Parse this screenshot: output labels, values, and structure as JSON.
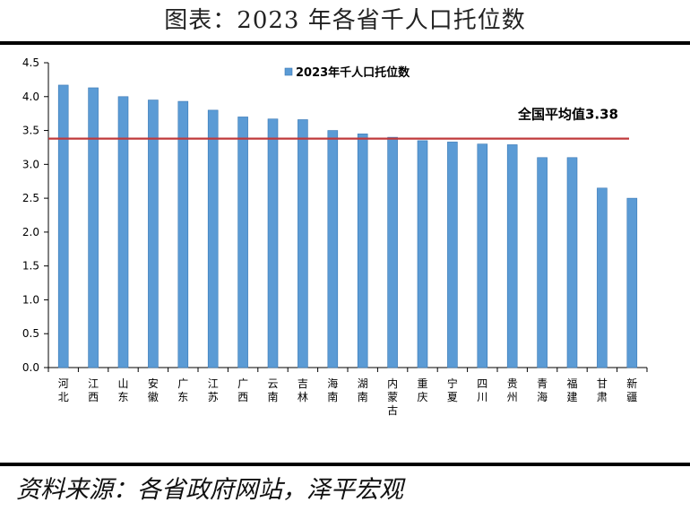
{
  "header": {
    "title": "图表：2023 年各省千人口托位数"
  },
  "footer": {
    "source": "资料来源：各省政府网站，泽平宏观"
  },
  "colors": {
    "bar": "#5b9bd5",
    "bar_edge": "#3a78b5",
    "avg_line": "#c0393b",
    "axis": "#000000"
  },
  "chart_data": {
    "type": "bar",
    "categories": [
      "河北",
      "江西",
      "山东",
      "安徽",
      "广东",
      "江苏",
      "广西",
      "云南",
      "吉林",
      "海南",
      "湖南",
      "内蒙古",
      "重庆",
      "宁夏",
      "四川",
      "贵州",
      "青海",
      "福建",
      "甘肃",
      "新疆"
    ],
    "series": [
      {
        "name": "2023年千人口托位数",
        "values": [
          4.17,
          4.13,
          4.0,
          3.95,
          3.93,
          3.8,
          3.7,
          3.67,
          3.66,
          3.5,
          3.45,
          3.4,
          3.35,
          3.33,
          3.3,
          3.29,
          3.1,
          3.1,
          2.65,
          2.5
        ]
      }
    ],
    "reference_line": {
      "label": "全国平均值3.38",
      "value": 3.38
    },
    "ylim": [
      0,
      4.5
    ],
    "yticks": [
      "0.0",
      "0.5",
      "1.0",
      "1.5",
      "2.0",
      "2.5",
      "3.0",
      "3.5",
      "4.0",
      "4.5"
    ],
    "legend_position": "top-center",
    "grid": false
  }
}
